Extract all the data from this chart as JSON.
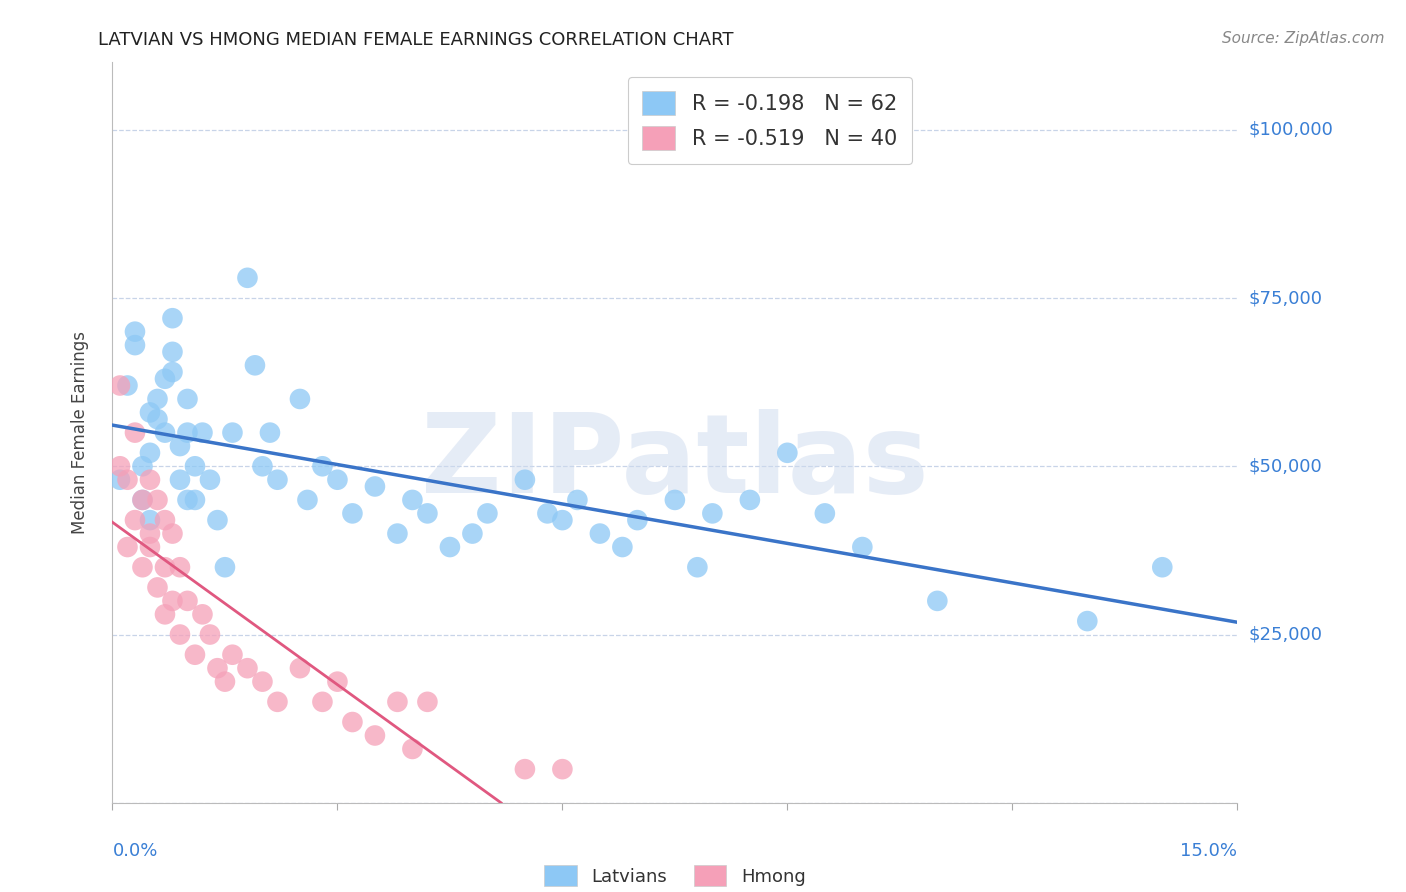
{
  "title": "LATVIAN VS HMONG MEDIAN FEMALE EARNINGS CORRELATION CHART",
  "source": "Source: ZipAtlas.com",
  "ylabel": "Median Female Earnings",
  "xlim": [
    0.0,
    0.15
  ],
  "ylim": [
    0,
    110000
  ],
  "legend_lat_R": "-0.198",
  "legend_lat_N": "62",
  "legend_hmong_R": "-0.519",
  "legend_hmong_N": "40",
  "latvian_color": "#8DC8F5",
  "hmong_color": "#F5A0B8",
  "latvian_line_color": "#3A74C8",
  "hmong_line_color": "#E05880",
  "blue_text_color": "#3A7FD5",
  "grid_color": "#C8D4E8",
  "background_color": "#FFFFFF",
  "title_fontsize": 13,
  "watermark": "ZIPatlas",
  "latvian_x": [
    0.001,
    0.002,
    0.003,
    0.003,
    0.004,
    0.004,
    0.005,
    0.005,
    0.005,
    0.006,
    0.006,
    0.007,
    0.007,
    0.008,
    0.008,
    0.008,
    0.009,
    0.009,
    0.01,
    0.01,
    0.01,
    0.011,
    0.011,
    0.012,
    0.013,
    0.014,
    0.015,
    0.016,
    0.018,
    0.019,
    0.02,
    0.021,
    0.022,
    0.025,
    0.026,
    0.028,
    0.03,
    0.032,
    0.035,
    0.038,
    0.04,
    0.042,
    0.045,
    0.048,
    0.05,
    0.055,
    0.058,
    0.06,
    0.062,
    0.065,
    0.068,
    0.07,
    0.075,
    0.078,
    0.08,
    0.085,
    0.09,
    0.095,
    0.1,
    0.11,
    0.13,
    0.14
  ],
  "latvian_y": [
    48000,
    62000,
    70000,
    68000,
    50000,
    45000,
    58000,
    42000,
    52000,
    60000,
    57000,
    63000,
    55000,
    67000,
    64000,
    72000,
    48000,
    53000,
    55000,
    45000,
    60000,
    50000,
    45000,
    55000,
    48000,
    42000,
    35000,
    55000,
    78000,
    65000,
    50000,
    55000,
    48000,
    60000,
    45000,
    50000,
    48000,
    43000,
    47000,
    40000,
    45000,
    43000,
    38000,
    40000,
    43000,
    48000,
    43000,
    42000,
    45000,
    40000,
    38000,
    42000,
    45000,
    35000,
    43000,
    45000,
    52000,
    43000,
    38000,
    30000,
    27000,
    35000
  ],
  "hmong_x": [
    0.001,
    0.001,
    0.002,
    0.002,
    0.003,
    0.003,
    0.004,
    0.004,
    0.005,
    0.005,
    0.005,
    0.006,
    0.006,
    0.007,
    0.007,
    0.007,
    0.008,
    0.008,
    0.009,
    0.009,
    0.01,
    0.011,
    0.012,
    0.013,
    0.014,
    0.015,
    0.016,
    0.018,
    0.02,
    0.022,
    0.025,
    0.028,
    0.03,
    0.032,
    0.035,
    0.038,
    0.04,
    0.042,
    0.055,
    0.06
  ],
  "hmong_y": [
    62000,
    50000,
    48000,
    38000,
    55000,
    42000,
    45000,
    35000,
    48000,
    40000,
    38000,
    45000,
    32000,
    42000,
    35000,
    28000,
    40000,
    30000,
    35000,
    25000,
    30000,
    22000,
    28000,
    25000,
    20000,
    18000,
    22000,
    20000,
    18000,
    15000,
    20000,
    15000,
    18000,
    12000,
    10000,
    15000,
    8000,
    15000,
    5000,
    5000
  ]
}
